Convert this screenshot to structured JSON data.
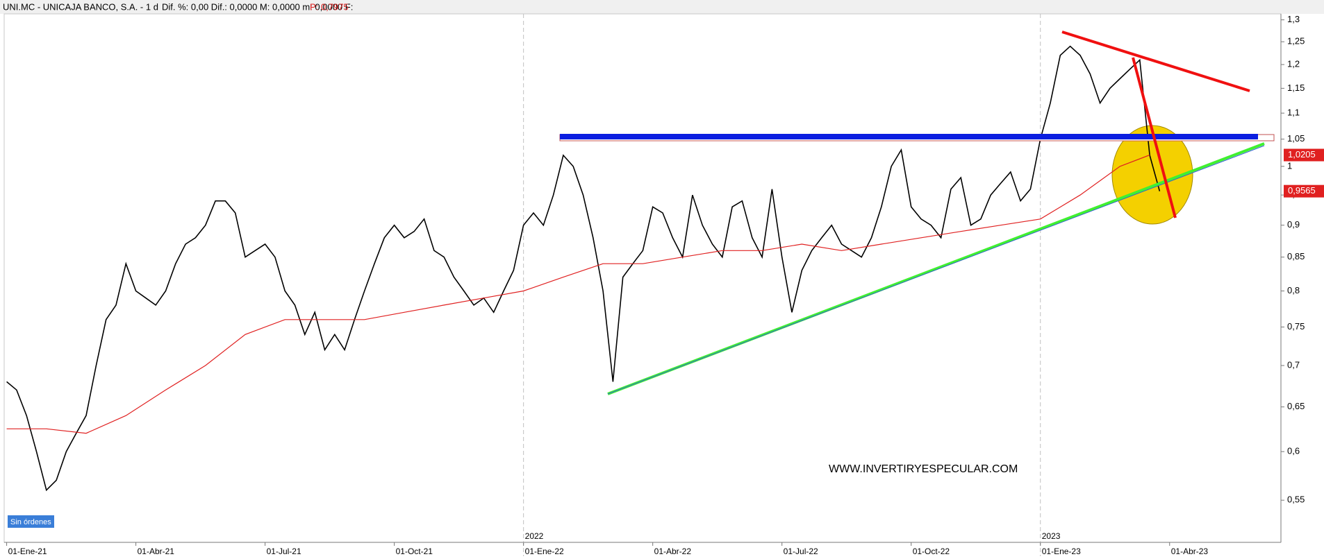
{
  "chart_data": {
    "type": "line",
    "title": "UNI.MC - UNICAJA BANCO, S.A. - 1 d",
    "subtitle": "Dif. %: 0,00   Dif.: 0,0000   M: 0,0000   m: 0,0000   F:",
    "price_note": "P: 0,7975",
    "watermark": "WWW.INVERTIRYESPECULAR.COM",
    "status": "Sin órdenes",
    "year_labels": [
      {
        "value": 52,
        "label": "2022"
      },
      {
        "value": 104,
        "label": "2023"
      }
    ],
    "log_scale": true,
    "xlim": [
      -0.25,
      128.2
    ],
    "ylim": [
      0.51,
      1.314
    ],
    "xticks": [
      {
        "value": 0,
        "label": "01-Ene-21"
      },
      {
        "value": 13,
        "label": "01-Abr-21"
      },
      {
        "value": 26,
        "label": "01-Jul-21"
      },
      {
        "value": 39,
        "label": "01-Oct-21"
      },
      {
        "value": 52,
        "label": "01-Ene-22"
      },
      {
        "value": 65,
        "label": "01-Abr-22"
      },
      {
        "value": 78,
        "label": "01-Jul-22"
      },
      {
        "value": 91,
        "label": "01-Oct-22"
      },
      {
        "value": 104,
        "label": "01-Ene-23"
      },
      {
        "value": 117,
        "label": "01-Abr-23"
      }
    ],
    "yticks": [
      {
        "value": 0.55,
        "label": "0,55"
      },
      {
        "value": 0.6,
        "label": "0,6"
      },
      {
        "value": 0.65,
        "label": "0,65"
      },
      {
        "value": 0.7,
        "label": "0,7"
      },
      {
        "value": 0.75,
        "label": "0,75"
      },
      {
        "value": 0.8,
        "label": "0,8"
      },
      {
        "value": 0.85,
        "label": "0,85"
      },
      {
        "value": 0.9,
        "label": "0,9"
      },
      {
        "value": 0.95,
        "label": "0,95"
      },
      {
        "value": 1,
        "label": "1"
      },
      {
        "value": 1.05,
        "label": "1,05"
      },
      {
        "value": 1.1,
        "label": "1,1"
      },
      {
        "value": 1.15,
        "label": "1,15"
      },
      {
        "value": 1.2,
        "label": "1,2"
      },
      {
        "value": 1.25,
        "label": "1,25"
      },
      {
        "value": 1.3,
        "label": "1,3"
      }
    ],
    "series": [
      {
        "color": "#000000",
        "x": [
          0,
          1,
          2,
          3,
          4,
          5,
          6,
          7,
          8,
          9,
          10,
          11,
          12,
          13,
          14,
          15,
          16,
          17,
          18,
          19,
          20,
          21,
          22,
          23,
          24,
          25,
          26,
          27,
          28,
          29,
          30,
          31,
          32,
          33,
          34,
          35,
          36,
          37,
          38,
          39,
          40,
          41,
          42,
          43,
          44,
          45,
          46,
          47,
          48,
          49,
          50,
          51,
          52,
          53,
          54,
          55,
          56,
          57,
          58,
          59,
          60,
          61,
          62,
          63,
          64,
          65,
          66,
          67,
          68,
          69,
          70,
          71,
          72,
          73,
          74,
          75,
          76,
          77,
          78,
          79,
          80,
          81,
          82,
          83,
          84,
          85,
          86,
          87,
          88,
          89,
          90,
          91,
          92,
          93,
          94,
          95,
          96,
          97,
          98,
          99,
          100,
          101,
          102,
          103,
          104,
          105,
          106,
          107,
          108,
          109,
          110,
          111,
          112,
          113,
          114,
          115,
          116
        ],
        "values": [
          0.68,
          0.67,
          0.64,
          0.6,
          0.56,
          0.57,
          0.6,
          0.62,
          0.64,
          0.7,
          0.76,
          0.78,
          0.84,
          0.8,
          0.79,
          0.78,
          0.8,
          0.84,
          0.87,
          0.88,
          0.9,
          0.94,
          0.94,
          0.92,
          0.85,
          0.86,
          0.87,
          0.85,
          0.8,
          0.78,
          0.74,
          0.77,
          0.72,
          0.74,
          0.72,
          0.76,
          0.8,
          0.84,
          0.88,
          0.9,
          0.88,
          0.89,
          0.91,
          0.86,
          0.85,
          0.82,
          0.8,
          0.78,
          0.79,
          0.77,
          0.8,
          0.83,
          0.9,
          0.92,
          0.9,
          0.95,
          1.02,
          1,
          0.95,
          0.88,
          0.8,
          0.68,
          0.82,
          0.84,
          0.86,
          0.93,
          0.92,
          0.88,
          0.85,
          0.95,
          0.9,
          0.87,
          0.85,
          0.93,
          0.94,
          0.88,
          0.85,
          0.96,
          0.85,
          0.77,
          0.83,
          0.86,
          0.88,
          0.9,
          0.87,
          0.86,
          0.85,
          0.88,
          0.93,
          1,
          1.03,
          0.93,
          0.91,
          0.9,
          0.88,
          0.96,
          0.98,
          0.9,
          0.91,
          0.95,
          0.97,
          0.99,
          0.94,
          0.96,
          1.05,
          1.12,
          1.22,
          1.24,
          1.22,
          1.18,
          1.12,
          1.15,
          1.17,
          1.19,
          1.21,
          1.02,
          0.9565
        ]
      },
      {
        "color": "#e02020",
        "x": [
          0,
          4,
          8,
          12,
          16,
          20,
          24,
          28,
          32,
          36,
          40,
          44,
          48,
          52,
          56,
          60,
          64,
          68,
          72,
          76,
          80,
          84,
          88,
          92,
          96,
          100,
          104,
          108,
          112,
          115
        ],
        "values": [
          0.625,
          0.625,
          0.62,
          0.64,
          0.67,
          0.7,
          0.74,
          0.76,
          0.76,
          0.76,
          0.77,
          0.78,
          0.79,
          0.8,
          0.82,
          0.84,
          0.84,
          0.85,
          0.86,
          0.86,
          0.87,
          0.86,
          0.87,
          0.88,
          0.89,
          0.9,
          0.91,
          0.95,
          1,
          1.0205
        ]
      }
    ],
    "markers": [
      {
        "value": 1.0205,
        "label": "1,0205",
        "color": "#e02020"
      },
      {
        "value": 0.9565,
        "label": "0,9565",
        "color": "#e02020"
      }
    ]
  }
}
